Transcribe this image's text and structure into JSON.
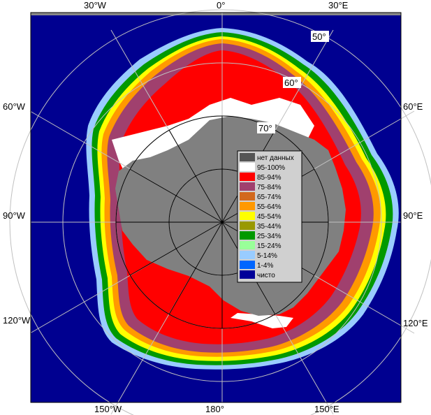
{
  "map": {
    "top_labels": [
      "30°W",
      "0°",
      "30°E"
    ],
    "bottom_labels": [
      "150°W",
      "180°",
      "150°E"
    ],
    "left_labels": [
      "60°W",
      "90°W",
      "120°W"
    ],
    "right_labels": [
      "60°E",
      "90°E",
      "120°E"
    ],
    "lat_labels": [
      "50°",
      "60°",
      "70°"
    ]
  },
  "legend": {
    "title": "нет данных",
    "items": [
      {
        "label": "95-100%",
        "color": "#ffffff"
      },
      {
        "label": "85-94%",
        "color": "#ff0000"
      },
      {
        "label": "75-84%",
        "color": "#a0406e"
      },
      {
        "label": "65-74%",
        "color": "#d2691e"
      },
      {
        "label": "55-64%",
        "color": "#ff9900"
      },
      {
        "label": "45-54%",
        "color": "#ffff00"
      },
      {
        "label": "35-44%",
        "color": "#999900"
      },
      {
        "label": "25-34%",
        "color": "#009900"
      },
      {
        "label": "15-24%",
        "color": "#99ff99"
      },
      {
        "label": "5-14%",
        "color": "#99ccff"
      },
      {
        "label": "1-4%",
        "color": "#0066ff"
      },
      {
        "label": "чисто",
        "color": "#000099"
      }
    ],
    "nodata_color": "#555555"
  },
  "colors": {
    "ocean": "#000090",
    "land": "#808080",
    "frame": "#888888",
    "graticule": "#c0c0c0"
  }
}
